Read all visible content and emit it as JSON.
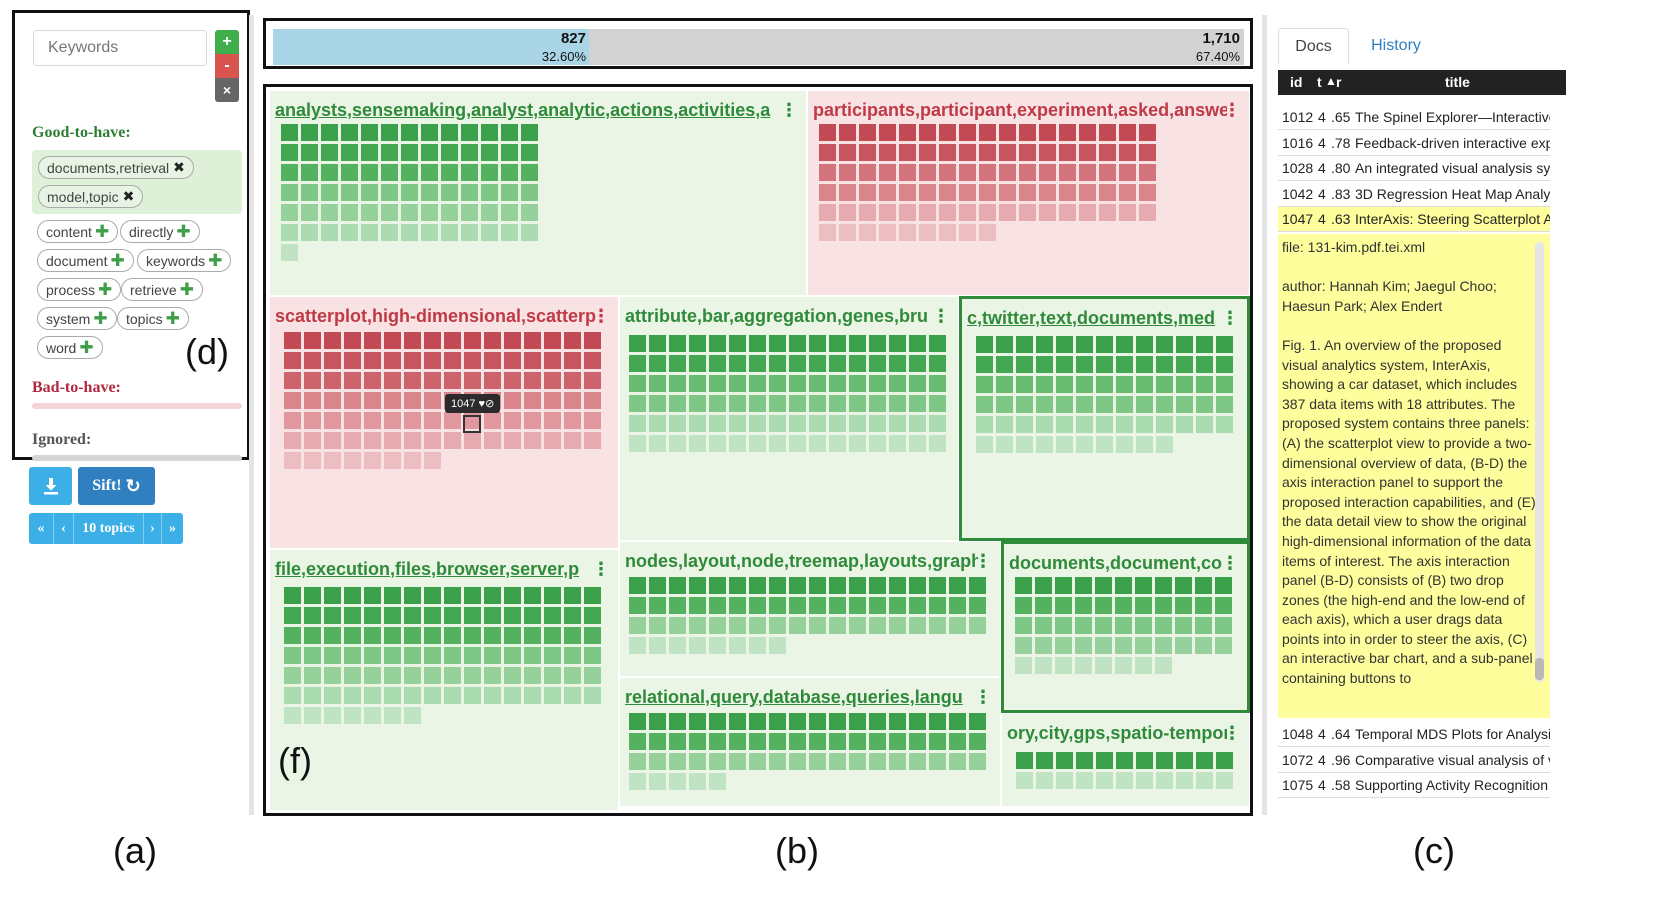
{
  "keywords": {
    "input_placeholder": "Keywords",
    "add_label": "+",
    "remove_label": "-",
    "clear_label": "×",
    "good_heading": "Good-to-have:",
    "bad_heading": "Bad-to-have:",
    "ignored_heading": "Ignored:",
    "good_tags": [
      "documents,retrieval",
      "model,topic"
    ],
    "suggested_tags": [
      "content",
      "directly",
      "document",
      "keywords",
      "process",
      "retrieve",
      "system",
      "topics",
      "word"
    ]
  },
  "actions": {
    "sift_label": "Sift!",
    "pager_label": "10 topics",
    "first": "«",
    "prev": "‹",
    "next": "›",
    "last": "»"
  },
  "ratio": {
    "left_count": "827",
    "left_pct": "32.60%",
    "right_count": "1,710",
    "right_pct": "67.40%",
    "left_fraction": 0.326
  },
  "topics": [
    {
      "title": "analysts,sensemaking,analyst,analytic,actions,activities,a",
      "kind": "good",
      "underline": true,
      "selected": false,
      "cols": 13,
      "count": 79
    },
    {
      "title": "participants,participant,experiment,asked,answers",
      "kind": "bad",
      "underline": false,
      "selected": false,
      "cols": 17,
      "count": 94
    },
    {
      "title": "scatterplot,high-dimensional,scatterplots",
      "kind": "bad",
      "underline": false,
      "selected": false,
      "cols": 16,
      "count": 104
    },
    {
      "title": "attribute,bar,aggregation,genes,bru",
      "kind": "good",
      "underline": false,
      "selected": false,
      "cols": 16,
      "count": 96
    },
    {
      "title": "c,twitter,text,documents,med",
      "kind": "good",
      "underline": true,
      "selected": true,
      "cols": 13,
      "count": 75
    },
    {
      "title": "file,execution,files,browser,server,p",
      "kind": "good",
      "underline": true,
      "selected": false,
      "cols": 16,
      "count": 103
    },
    {
      "title": "nodes,layout,node,treemap,layouts,graph",
      "kind": "good",
      "underline": false,
      "selected": false,
      "cols": 18,
      "count": 62
    },
    {
      "title": "documents,document,co",
      "kind": "good",
      "underline": false,
      "selected": true,
      "cols": 11,
      "count": 52
    },
    {
      "title": "relational,query,database,queries,langu",
      "kind": "good",
      "underline": true,
      "selected": false,
      "cols": 18,
      "count": 59
    },
    {
      "title": "ory,city,gps,spatio-tempor",
      "kind": "good",
      "underline": false,
      "selected": false,
      "cols": 11,
      "count": 22
    }
  ],
  "tooltip": {
    "doc_id": "1047",
    "icons": "♥⊘"
  },
  "docs": {
    "tab_docs": "Docs",
    "tab_history": "History",
    "col_id": "id",
    "col_t": "t",
    "col_r": "r",
    "col_title": "title",
    "rows_top": [
      {
        "id": "1012",
        "t": "4",
        "r": ".65",
        "title": "The Spinel Explorer—Interactive"
      },
      {
        "id": "1016",
        "t": "4",
        "r": ".78",
        "title": "Feedback-driven interactive exp"
      },
      {
        "id": "1028",
        "t": "4",
        "r": ".80",
        "title": "An integrated visual analysis sy"
      },
      {
        "id": "1042",
        "t": "4",
        "r": ".83",
        "title": "3D Regression Heat Map Analys"
      },
      {
        "id": "1047",
        "t": "4",
        "r": ".63",
        "title": "InterAxis: Steering Scatterplot A"
      }
    ],
    "detail_file": "file: 131-kim.pdf.tei.xml",
    "detail_author": "author: Hannah Kim; Jaegul Choo; Haesun Park; Alex Endert",
    "detail_abstract": "Fig. 1. An overview of the proposed visual analytics system, InterAxis, showing a car dataset, which includes 387 data items with 18 attributes. The proposed system contains three panels: (A) the scatterplot view to provide a two-dimensional overview of data, (B-D) the axis interaction panel to support the proposed interaction capabilities, and (E) the data detail view to show the original high-dimensional information of the data items of interest. The axis interaction panel (B-D) consists of (B) two drop zones (the high-end and the low-end of each axis), which a user drags data points into in order to steer the axis, (C) an interactive bar chart, and a sub-panel containing buttons to",
    "rows_bottom": [
      {
        "id": "1048",
        "t": "4",
        "r": ".64",
        "title": "Temporal MDS Plots for Analysi"
      },
      {
        "id": "1072",
        "t": "4",
        "r": ".96",
        "title": "Comparative visual analysis of v"
      },
      {
        "id": "1075",
        "t": "4",
        "r": ".58",
        "title": "Supporting Activity Recognition"
      }
    ]
  },
  "figure_labels": {
    "a": "(a)",
    "b": "(b)",
    "c": "(c)",
    "d": "(d)",
    "f": "(f)"
  },
  "colors": {
    "good": "#3f9e47",
    "bad": "#c03a45",
    "accent": "#2f7fc1"
  }
}
